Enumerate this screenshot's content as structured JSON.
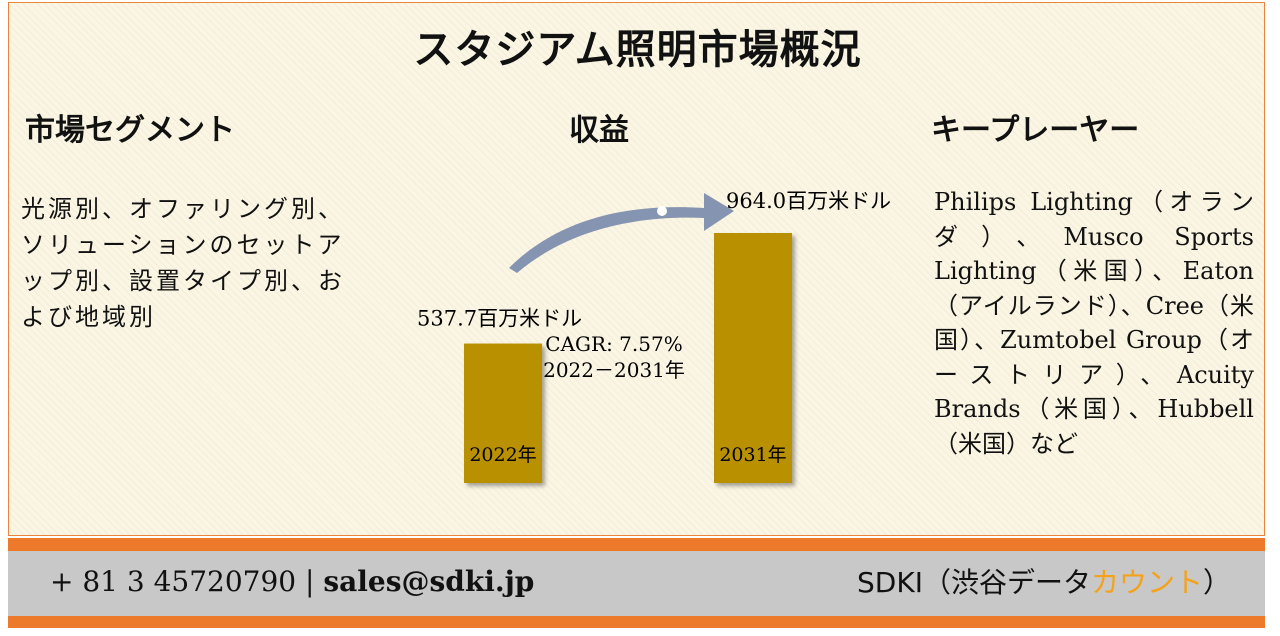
{
  "title": "スタジアム照明市場概況",
  "segment": {
    "heading": "市場セグメント",
    "text": "光源別、オファリング別、ソリューションのセットアップ別、設置タイプ別、および地域別"
  },
  "revenue": {
    "heading": "収益",
    "cagr_line1": "CAGR: 7.57%",
    "cagr_line2": "2022－2031年"
  },
  "key_players": {
    "heading": "キープレーヤー",
    "text": "Philips Lighting（オランダ）、Musco Sports Lighting（米国）、Eaton（アイルランド）、Cree（米国）、Zumtobel Group（オーストリア）、Acuity Brands（米国）、Hubbell（米国）など"
  },
  "chart_data": {
    "type": "bar",
    "categories": [
      "2022年",
      "2031年"
    ],
    "values": [
      537.7,
      964.0
    ],
    "value_labels": [
      "537.7百万米ドル",
      "964.0百万米ドル"
    ],
    "bar_color": "#b89000"
  },
  "footer": {
    "phone": "+ 81 3 45720790",
    "separator": "|",
    "email": "sales@sdki.jp",
    "brand_main": "SDKI（渋谷データ",
    "brand_accent": "カウント",
    "brand_end": "）"
  },
  "colors": {
    "border": "#e8853a",
    "footer_stripe": "#ec7a2a",
    "footer_bg": "#c8c8c8",
    "accent": "#f4a21a",
    "arrow": "#8594b0"
  }
}
